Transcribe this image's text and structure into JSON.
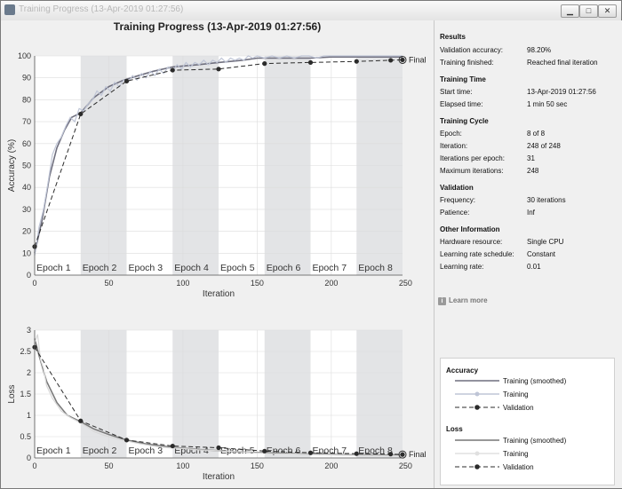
{
  "window": {
    "title": "Training Progress (13-Apr-2019 01:27:56)"
  },
  "figure": {
    "title": "Training Progress (13-Apr-2019 01:27:56)"
  },
  "colors": {
    "smoothed": "#6f6f7e",
    "training": "#bfc5d6",
    "validation": "#2b2b2b",
    "epoch_band": "#e3e4e6"
  },
  "chart_data": [
    {
      "type": "line",
      "name": "Accuracy",
      "xlabel": "Iteration",
      "ylabel": "Accuracy (%)",
      "xlim": [
        0,
        248
      ],
      "ylim": [
        0,
        100
      ],
      "xticks": [
        0,
        50,
        100,
        150,
        200,
        250
      ],
      "yticks": [
        0,
        10,
        20,
        30,
        40,
        50,
        60,
        70,
        80,
        90,
        100
      ],
      "epoch_labels": [
        "Epoch 1",
        "Epoch 2",
        "Epoch 3",
        "Epoch 4",
        "Epoch 5",
        "Epoch 6",
        "Epoch 7",
        "Epoch 8"
      ],
      "iterations_per_epoch": 31,
      "final_label": "Final",
      "series": [
        {
          "name": "Training (smoothed)",
          "x": [
            0,
            5,
            10,
            15,
            20,
            25,
            31,
            40,
            50,
            60,
            70,
            80,
            93,
            110,
            124,
            140,
            150,
            165,
            186,
            200,
            220,
            248
          ],
          "values": [
            10,
            25,
            45,
            58,
            66,
            72,
            74,
            81,
            86,
            89,
            91,
            93,
            95,
            96,
            97,
            98,
            99,
            99,
            99,
            99.5,
            99.5,
            99.5
          ]
        },
        {
          "name": "Training",
          "x": [
            0,
            3,
            6,
            9,
            12,
            15,
            18,
            21,
            24,
            27,
            30,
            33,
            36,
            39,
            42,
            45,
            48,
            51,
            54,
            57,
            60,
            63,
            66,
            69,
            72,
            75,
            78,
            81,
            84,
            87,
            90,
            93,
            96,
            99,
            102,
            105,
            108,
            111,
            114,
            117,
            120,
            123,
            126,
            129,
            132,
            135,
            138,
            141,
            144,
            147,
            150,
            155,
            160,
            165,
            170,
            175,
            180,
            185,
            190,
            195,
            200,
            210,
            220,
            230,
            240,
            248
          ],
          "values": [
            9,
            22,
            30,
            42,
            55,
            60,
            63,
            68,
            72,
            70,
            76,
            75,
            78,
            80,
            84,
            82,
            86,
            84,
            88,
            86,
            89,
            88,
            91,
            89,
            92,
            90,
            93,
            91,
            94,
            92,
            95,
            93,
            96,
            94,
            97,
            95,
            97,
            96,
            98,
            96,
            98,
            97,
            99,
            97,
            99,
            98,
            99,
            98,
            100,
            99,
            100,
            99,
            100,
            99,
            100,
            99,
            100,
            100,
            99,
            100,
            100,
            100,
            100,
            100,
            100,
            100
          ]
        },
        {
          "name": "Validation",
          "x": [
            0,
            31,
            62,
            93,
            124,
            155,
            186,
            217,
            240,
            248
          ],
          "values": [
            13,
            73.5,
            88.5,
            93.5,
            94,
            96.5,
            97,
            97.5,
            98,
            98.2
          ]
        }
      ]
    },
    {
      "type": "line",
      "name": "Loss",
      "xlabel": "Iteration",
      "ylabel": "Loss",
      "xlim": [
        0,
        248
      ],
      "ylim": [
        0,
        3
      ],
      "xticks": [
        0,
        50,
        100,
        150,
        200,
        250
      ],
      "yticks": [
        0,
        0.5,
        1,
        1.5,
        2,
        2.5,
        3
      ],
      "epoch_labels": [
        "Epoch 1",
        "Epoch 2",
        "Epoch 3",
        "Epoch 4",
        "Epoch 5",
        "Epoch 6",
        "Epoch 7",
        "Epoch 8"
      ],
      "iterations_per_epoch": 31,
      "final_label": "Final",
      "series": [
        {
          "name": "Training (smoothed)",
          "x": [
            0,
            3,
            8,
            15,
            22,
            31,
            40,
            50,
            62,
            75,
            93,
            110,
            124,
            140,
            155,
            186,
            217,
            248
          ],
          "values": [
            2.8,
            2.4,
            1.8,
            1.3,
            1.0,
            0.85,
            0.68,
            0.55,
            0.42,
            0.33,
            0.25,
            0.2,
            0.17,
            0.14,
            0.12,
            0.09,
            0.07,
            0.06
          ]
        },
        {
          "name": "Training",
          "x": [
            0,
            2,
            4,
            6,
            8,
            10,
            12,
            14,
            16,
            18,
            20,
            24,
            28,
            31,
            35,
            40,
            45,
            50,
            56,
            62,
            70,
            80,
            90,
            100,
            110,
            124,
            140,
            160,
            180,
            200,
            220,
            248
          ],
          "values": [
            2.7,
            2.9,
            2.3,
            2.1,
            1.7,
            1.55,
            1.4,
            1.3,
            1.2,
            1.1,
            1.05,
            0.95,
            0.88,
            0.82,
            0.74,
            0.62,
            0.55,
            0.5,
            0.44,
            0.4,
            0.34,
            0.28,
            0.24,
            0.22,
            0.19,
            0.17,
            0.14,
            0.1,
            0.09,
            0.07,
            0.06,
            0.05
          ]
        },
        {
          "name": "Validation",
          "x": [
            0,
            31,
            62,
            93,
            124,
            155,
            186,
            217,
            240,
            248
          ],
          "values": [
            2.6,
            0.87,
            0.42,
            0.28,
            0.24,
            0.16,
            0.12,
            0.1,
            0.09,
            0.08
          ]
        }
      ]
    }
  ],
  "side": {
    "results": {
      "title": "Results",
      "rows": [
        {
          "label": "Validation accuracy:",
          "value": "98.20%"
        },
        {
          "label": "Training finished:",
          "value": "Reached final iteration"
        }
      ]
    },
    "time": {
      "title": "Training Time",
      "rows": [
        {
          "label": "Start time:",
          "value": "13-Apr-2019 01:27:56"
        },
        {
          "label": "Elapsed time:",
          "value": "1 min 50 sec"
        }
      ]
    },
    "cycle": {
      "title": "Training Cycle",
      "rows": [
        {
          "label": "Epoch:",
          "value": "8 of 8"
        },
        {
          "label": "Iteration:",
          "value": "248 of 248"
        },
        {
          "label": "Iterations per epoch:",
          "value": "31"
        },
        {
          "label": "Maximum iterations:",
          "value": "248"
        }
      ]
    },
    "validation": {
      "title": "Validation",
      "rows": [
        {
          "label": "Frequency:",
          "value": "30 iterations"
        },
        {
          "label": "Patience:",
          "value": "Inf"
        }
      ]
    },
    "other": {
      "title": "Other Information",
      "rows": [
        {
          "label": "Hardware resource:",
          "value": "Single CPU"
        },
        {
          "label": "Learning rate schedule:",
          "value": "Constant"
        },
        {
          "label": "Learning rate:",
          "value": "0.01"
        }
      ]
    },
    "learn_more": "Learn more"
  },
  "legend": {
    "accuracy_title": "Accuracy",
    "loss_title": "Loss",
    "items": [
      "Training (smoothed)",
      "Training",
      "Validation"
    ]
  }
}
